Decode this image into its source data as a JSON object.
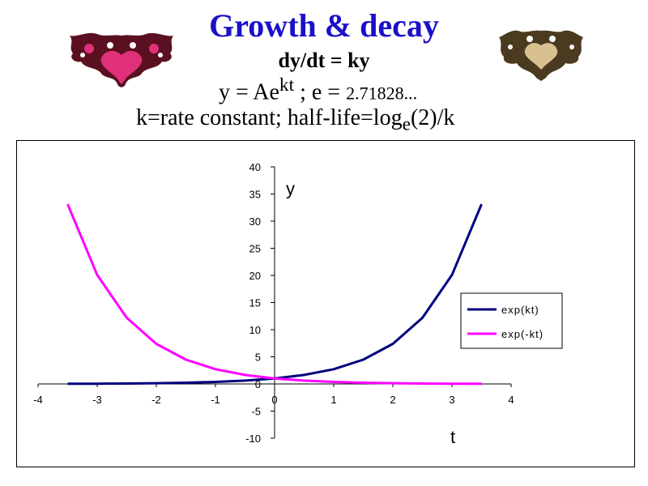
{
  "header": {
    "title": "Growth & decay",
    "eq1": "dy/dt = ky",
    "eq2_prefix": "y = Ae",
    "eq2_sup": "kt",
    "eq2_mid": " ;  e = ",
    "eq2_e": "2.71828...",
    "eq3_prefix": "k=rate constant; half-life=log",
    "eq3_sub": "e",
    "eq3_suffix": "(2)/k"
  },
  "colors": {
    "title": "#1a10c8",
    "growth": "#000080",
    "decay": "#ff00ff"
  },
  "decorations": {
    "left_blot": "inkblot-icon",
    "right_blot": "inkblot-icon"
  },
  "chart_data": {
    "type": "line",
    "xlabel": "t",
    "ylabel": "y",
    "xlim": [
      -4,
      4
    ],
    "ylim": [
      -10,
      40
    ],
    "xticks": [
      "-4",
      "-3",
      "-2",
      "-1",
      "0",
      "1",
      "2",
      "3",
      "4"
    ],
    "yticks": [
      "-10",
      "-5",
      "0",
      "5",
      "10",
      "15",
      "20",
      "25",
      "30",
      "35",
      "40"
    ],
    "x": [
      -3.5,
      -3.0,
      -2.5,
      -2.0,
      -1.5,
      -1.0,
      -0.5,
      0.0,
      0.5,
      1.0,
      1.5,
      2.0,
      2.5,
      3.0,
      3.5
    ],
    "series": [
      {
        "name": "exp(kt)",
        "color": "#000080",
        "values": [
          0.03,
          0.05,
          0.08,
          0.14,
          0.22,
          0.37,
          0.61,
          1.0,
          1.65,
          2.72,
          4.48,
          7.39,
          12.18,
          20.09,
          33.12
        ]
      },
      {
        "name": "exp(-kt)",
        "color": "#ff00ff",
        "values": [
          33.12,
          20.09,
          12.18,
          7.39,
          4.48,
          2.72,
          1.65,
          1.0,
          0.61,
          0.37,
          0.22,
          0.14,
          0.08,
          0.05,
          0.03
        ]
      }
    ],
    "grid": false,
    "legend": "right"
  }
}
